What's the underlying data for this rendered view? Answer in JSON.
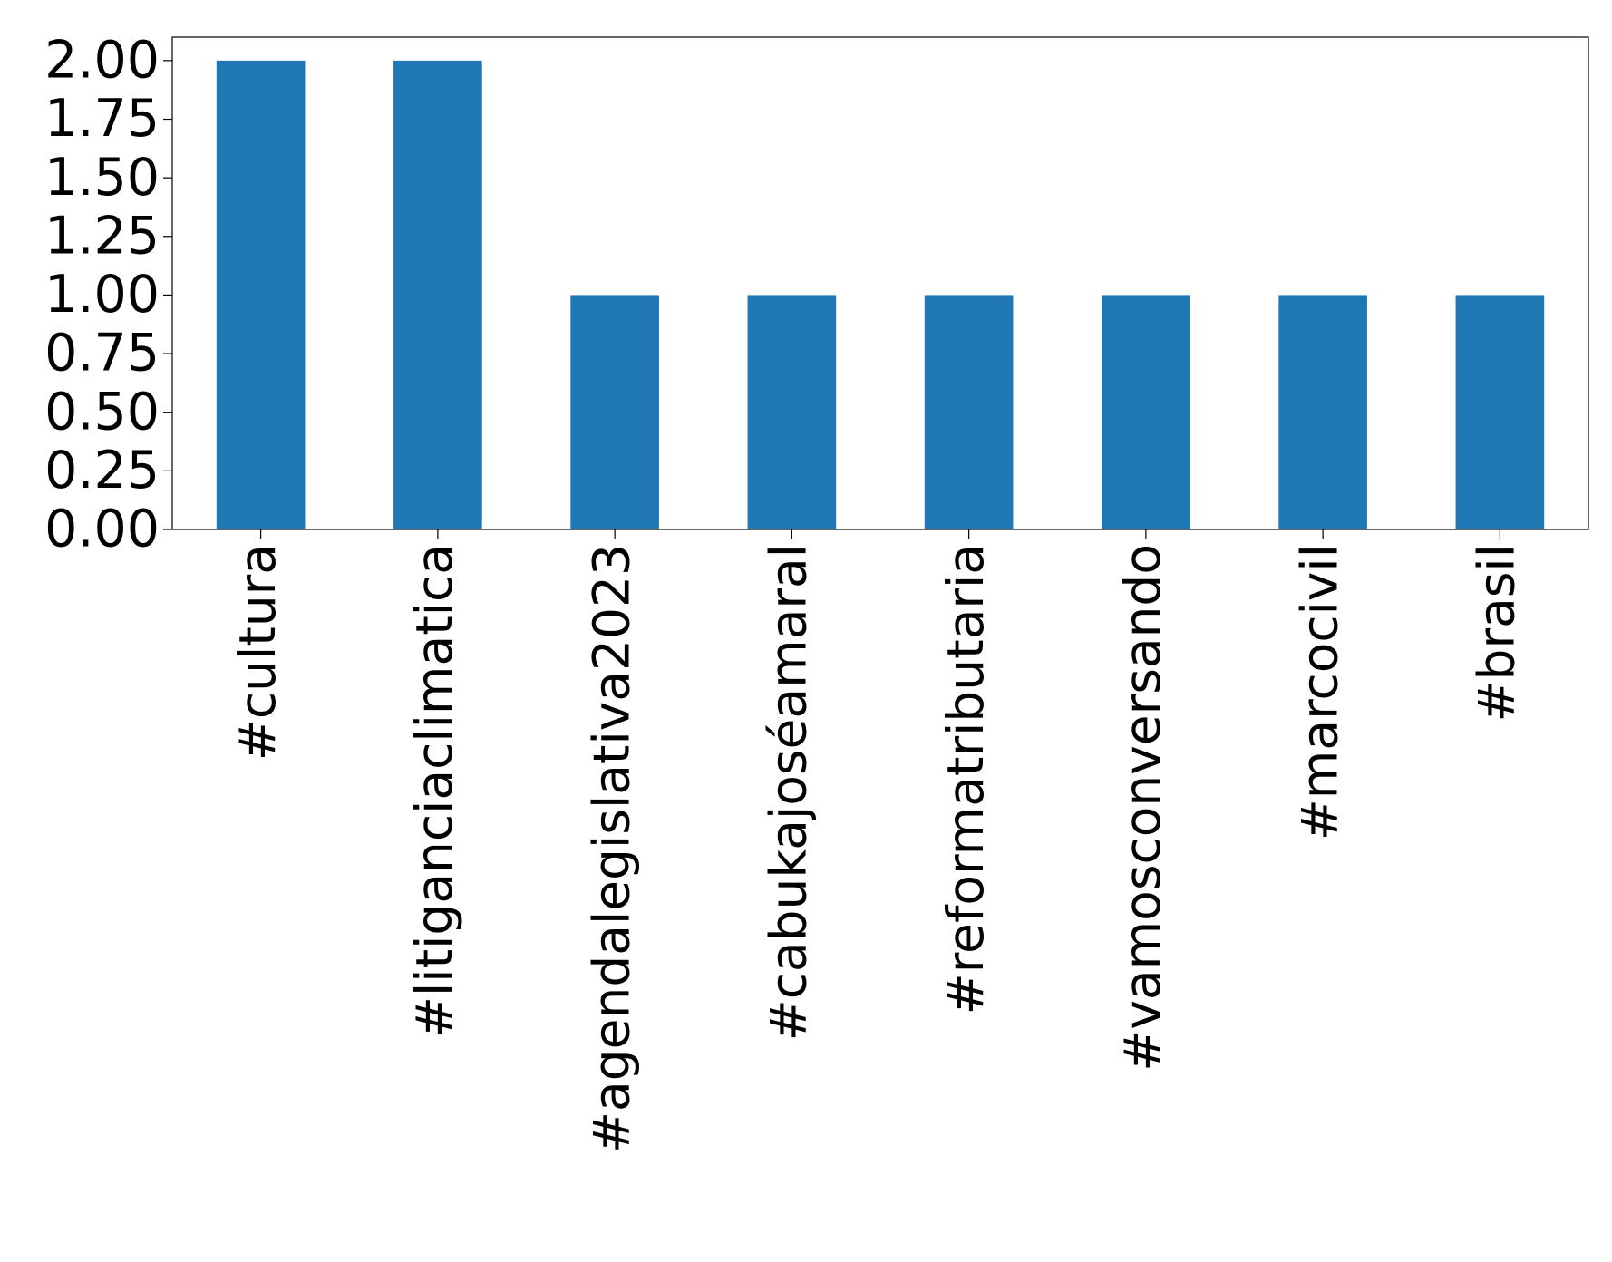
{
  "chart_data": {
    "type": "bar",
    "categories": [
      "#cultura",
      "#litiganciaclimatica",
      "#agendalegislativa2023",
      "#cabukajoséamaral",
      "#reformatributaria",
      "#vamosconversando",
      "#marcocivil",
      "#brasil"
    ],
    "values": [
      2,
      2,
      1,
      1,
      1,
      1,
      1,
      1
    ],
    "color": "#1f77b4",
    "ylim": [
      0,
      2.1
    ],
    "yticks": [
      {
        "value": 0,
        "label": "0.00"
      },
      {
        "value": 0.25,
        "label": "0.25"
      },
      {
        "value": 0.5,
        "label": "0.50"
      },
      {
        "value": 0.75,
        "label": "0.75"
      },
      {
        "value": 1,
        "label": "1.00"
      },
      {
        "value": 1.25,
        "label": "1.25"
      },
      {
        "value": 1.5,
        "label": "1.50"
      },
      {
        "value": 1.75,
        "label": "1.75"
      },
      {
        "value": 2,
        "label": "2.00"
      }
    ],
    "grid": false
  }
}
